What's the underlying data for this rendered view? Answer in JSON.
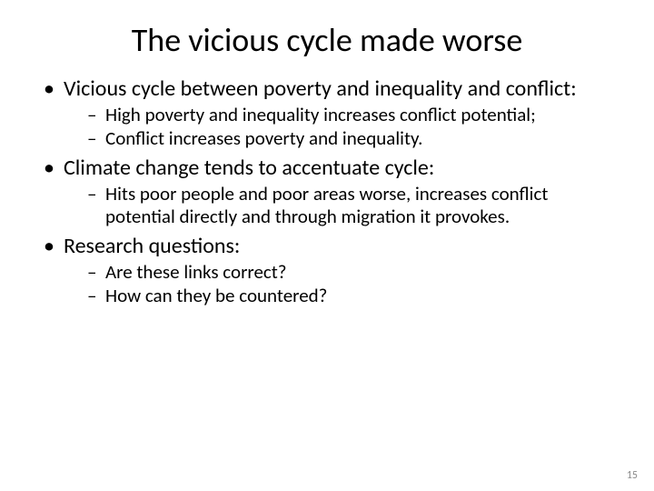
{
  "slide": {
    "title": "The vicious cycle made worse",
    "page_number": "15",
    "colors": {
      "background": "#ffffff",
      "text": "#000000",
      "pagenum": "#8b8b8b"
    },
    "typography": {
      "title_fontsize": 36,
      "level1_fontsize": 24,
      "level2_fontsize": 21,
      "font_family": "Calibri"
    },
    "bullets": [
      {
        "text": "Vicious cycle between poverty and inequality and conflict:",
        "sub": [
          {
            "text": "High poverty and inequality increases conflict potential;"
          },
          {
            "text": "Conflict increases poverty and inequality."
          }
        ]
      },
      {
        "text": "Climate change tends to accentuate cycle:",
        "sub": [
          {
            "text": "Hits poor people and poor areas worse, increases conflict potential directly and through migration it provokes."
          }
        ]
      },
      {
        "text": "Research questions:",
        "sub": [
          {
            "text": "Are these links correct?"
          },
          {
            "text": "How can they be countered?"
          }
        ]
      }
    ]
  }
}
